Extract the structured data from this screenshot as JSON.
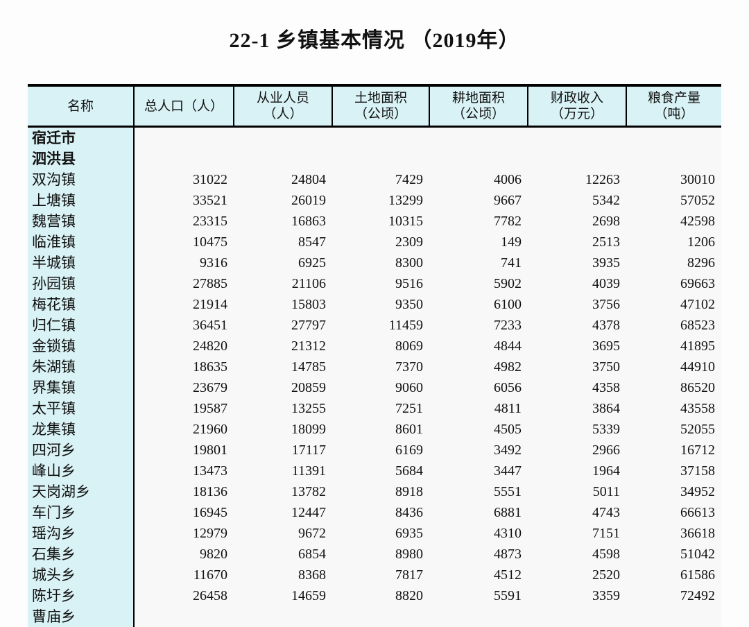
{
  "page": {
    "title": "22-1 乡镇基本情况 （2019年）"
  },
  "colors": {
    "header_bg": "#d9f2f5",
    "border": "#000000",
    "page_bg": "#fdfdfd"
  },
  "table": {
    "columns": [
      {
        "label": "名称",
        "sub": ""
      },
      {
        "label": "总人口（人）",
        "sub": ""
      },
      {
        "label": "从业人员",
        "sub": "（人）"
      },
      {
        "label": "土地面积",
        "sub": "（公顷）"
      },
      {
        "label": "耕地面积",
        "sub": "（公顷）"
      },
      {
        "label": "财政收入",
        "sub": "（万元）"
      },
      {
        "label": "粮食产量",
        "sub": "（吨）"
      }
    ],
    "group_rows": [
      {
        "name": "宿迁市"
      },
      {
        "name": "泗洪县"
      }
    ],
    "rows": [
      {
        "name": "双沟镇",
        "values": [
          31022,
          24804,
          7429,
          4006,
          12263,
          30010
        ]
      },
      {
        "name": "上塘镇",
        "values": [
          33521,
          26019,
          13299,
          9667,
          5342,
          57052
        ]
      },
      {
        "name": "魏营镇",
        "values": [
          23315,
          16863,
          10315,
          7782,
          2698,
          42598
        ]
      },
      {
        "name": "临淮镇",
        "values": [
          10475,
          8547,
          2309,
          149,
          2513,
          1206
        ]
      },
      {
        "name": "半城镇",
        "values": [
          9316,
          6925,
          8300,
          741,
          3935,
          8296
        ]
      },
      {
        "name": "孙园镇",
        "values": [
          27885,
          21106,
          9516,
          5902,
          4039,
          69663
        ]
      },
      {
        "name": "梅花镇",
        "values": [
          21914,
          15803,
          9350,
          6100,
          3756,
          47102
        ]
      },
      {
        "name": "归仁镇",
        "values": [
          36451,
          27797,
          11459,
          7233,
          4378,
          68523
        ]
      },
      {
        "name": "金锁镇",
        "values": [
          24820,
          21312,
          8069,
          4844,
          3695,
          41895
        ]
      },
      {
        "name": "朱湖镇",
        "values": [
          18635,
          14785,
          7370,
          4982,
          3750,
          44910
        ]
      },
      {
        "name": "界集镇",
        "values": [
          23679,
          20859,
          9060,
          6056,
          4358,
          86520
        ]
      },
      {
        "name": "太平镇",
        "values": [
          19587,
          13255,
          7251,
          4811,
          3864,
          43558
        ]
      },
      {
        "name": "龙集镇",
        "values": [
          21960,
          18099,
          8601,
          4505,
          5339,
          52055
        ]
      },
      {
        "name": "四河乡",
        "values": [
          19801,
          17117,
          6169,
          3492,
          2966,
          16712
        ]
      },
      {
        "name": "峰山乡",
        "values": [
          13473,
          11391,
          5684,
          3447,
          1964,
          37158
        ]
      },
      {
        "name": "天岗湖乡",
        "values": [
          18136,
          13782,
          8918,
          5551,
          5011,
          34952
        ]
      },
      {
        "name": "车门乡",
        "values": [
          16945,
          12447,
          8436,
          6881,
          4743,
          66613
        ]
      },
      {
        "name": "瑶沟乡",
        "values": [
          12979,
          9672,
          6935,
          4310,
          7151,
          36618
        ]
      },
      {
        "name": "石集乡",
        "values": [
          9820,
          6854,
          8980,
          4873,
          4598,
          51042
        ]
      },
      {
        "name": "城头乡",
        "values": [
          11670,
          8368,
          7817,
          4512,
          2520,
          61586
        ]
      },
      {
        "name": "陈圩乡",
        "values": [
          26458,
          14659,
          8820,
          5591,
          3359,
          72492
        ]
      }
    ],
    "partial_row": {
      "name": "曹庙乡",
      "values": [
        "",
        "",
        "",
        "",
        "",
        ""
      ]
    }
  }
}
